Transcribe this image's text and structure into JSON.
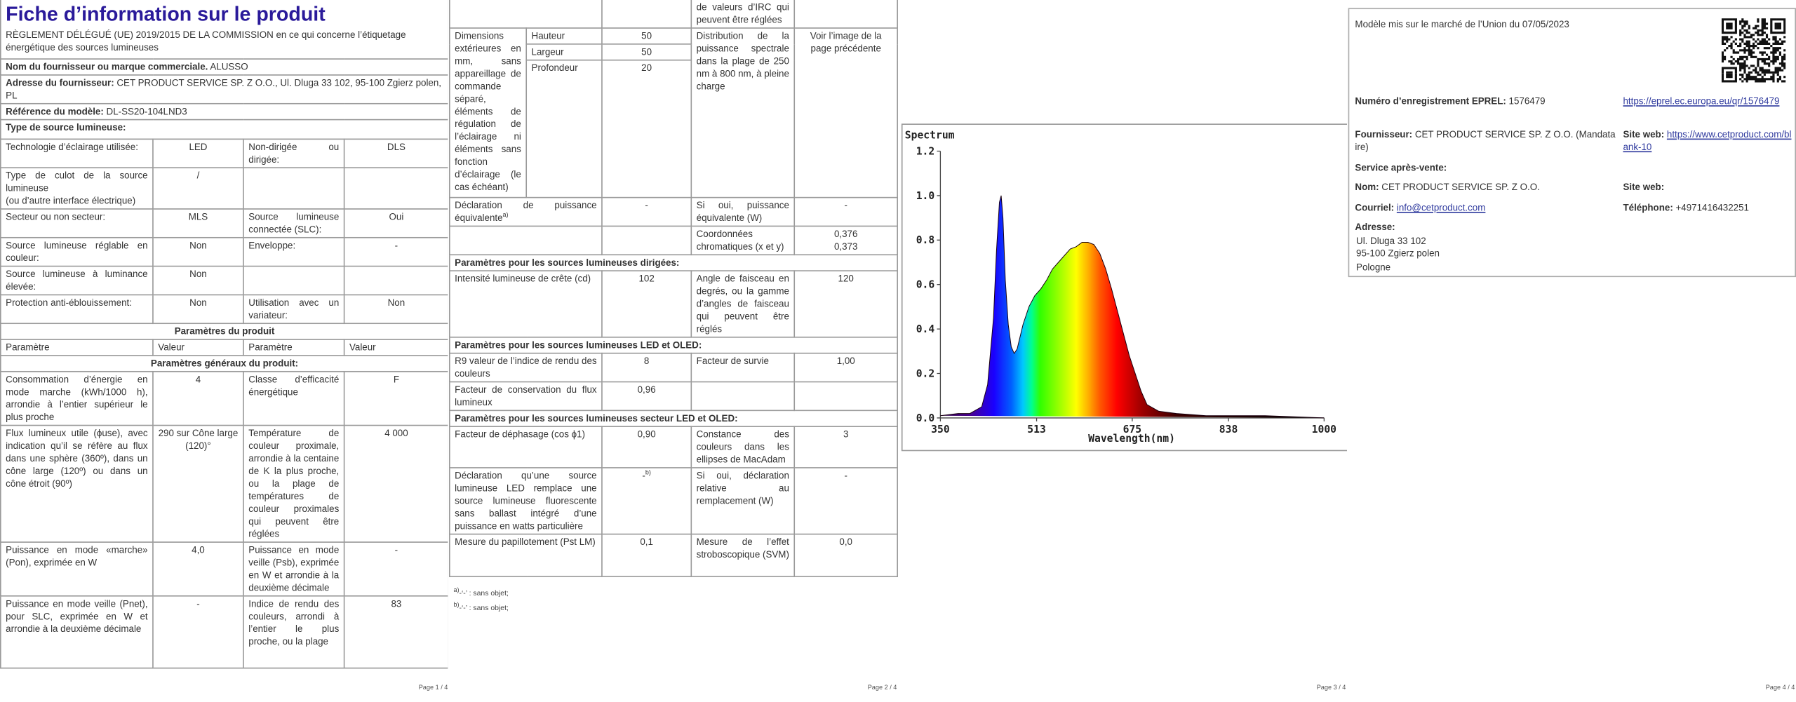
{
  "chart_data": {
    "type": "area",
    "title": "Spectrum",
    "x_label": "Wavelength(nm)",
    "x": [
      350,
      380,
      400,
      420,
      430,
      440,
      445,
      450,
      453,
      456,
      460,
      465,
      470,
      475,
      480,
      490,
      500,
      510,
      520,
      530,
      540,
      550,
      560,
      570,
      580,
      590,
      600,
      610,
      620,
      630,
      640,
      650,
      660,
      670,
      680,
      690,
      700,
      720,
      750,
      800,
      850,
      900,
      1000
    ],
    "values": [
      0.01,
      0.02,
      0.02,
      0.05,
      0.15,
      0.45,
      0.75,
      0.97,
      1.0,
      0.9,
      0.62,
      0.42,
      0.32,
      0.29,
      0.31,
      0.42,
      0.5,
      0.55,
      0.58,
      0.62,
      0.67,
      0.7,
      0.73,
      0.76,
      0.77,
      0.79,
      0.79,
      0.78,
      0.74,
      0.67,
      0.58,
      0.48,
      0.38,
      0.28,
      0.2,
      0.12,
      0.06,
      0.03,
      0.02,
      0.01,
      0.01,
      0.01,
      0.0
    ],
    "xlim": [
      350,
      1000
    ],
    "ylim": [
      0,
      1.2
    ],
    "xticks": [
      350,
      513,
      675,
      838,
      1000
    ],
    "yticks": [
      {
        "value": 0,
        "label": "0.0"
      },
      0.2,
      0.4,
      0.6,
      0.8,
      {
        "value": 1,
        "label": "1.0"
      },
      1.2
    ]
  },
  "page1": {
    "title": "Fiche d’information sur le produit",
    "regulation": "RÈGLEMENT DÉLÉGUÉ (UE) 2019/2015 DE LA COMMISSION en ce qui concerne l’étiquetage énergétique des sources lumineuses",
    "supplier": [
      "Nom du fournisseur ou marque commerciale.",
      "ALUSSO"
    ],
    "address": [
      "Adresse du fournisseur:",
      "CET PRODUCT SERVICE SP. Z O.O., Ul. Dluga 33 102, 95-100 Zgierz polen, PL"
    ],
    "model": [
      "Référence du modèle:",
      "DL-SS20-104LND3"
    ],
    "type_heading": "Type de source lumineuse:",
    "type_rows": [
      [
        "Technologie d’éclairage utilisée:",
        "LED",
        "Non-dirigée ou dirigée:",
        "DLS"
      ],
      [
        "Type de culot de la source lumineuse\n(ou d’autre interface électrique)",
        "/",
        null,
        null
      ],
      [
        "Secteur ou non secteur:",
        "MLS",
        "Source lumineuse connectée (SLC):",
        "Oui"
      ],
      [
        "Source lumineuse réglable en couleur:",
        "Non",
        "Enveloppe:",
        "-"
      ],
      [
        "Source lumineuse à luminance élevée:",
        "Non",
        null,
        null
      ],
      [
        "Protection anti-éblouissement:",
        "Non",
        "Utilisation avec un variateur:",
        "Non"
      ]
    ],
    "params_heading": "Paramètres du produit",
    "columns": [
      "Paramètre",
      "Valeur",
      "Paramètre",
      "Valeur"
    ],
    "general_heading": "Paramètres généraux du produit:",
    "general_rows": [
      [
        "Consommation d’énergie en mode marche (kWh/1000 h), arrondie à l’entier supérieur le plus proche",
        "4",
        "Classe d’efficacité énergétique",
        "F"
      ],
      [
        "Flux lumineux utile (ϕuse), avec indication qu’il se réfère au flux dans une sphère (360º), dans un cône large (120º) ou dans un cône étroit (90º)",
        "290 sur Cône large (120)°",
        "Température de couleur proximale, arrondie à la centaine de K la plus proche, ou la plage de températures de couleur proximales qui peuvent être réglées",
        "4 000"
      ],
      [
        "Puissance en mode «marche» (Pon), exprimée en W",
        "4,0",
        "Puissance en mode veille (Psb), exprimée en W et arrondie à la deuxième décimale",
        "-"
      ],
      [
        "Puissance en mode veille (Pnet), pour SLC, exprimée en W et arrondie à la deuxième décimale",
        "-",
        "Indice de rendu des couleurs, arrondi à l’entier le plus proche, ou la plage",
        "83"
      ]
    ],
    "footer": "Page 1 / 4"
  },
  "page2": {
    "continuation": "de valeurs d’IRC qui peuvent être réglées",
    "dimensions_label": "Dimensions extérieures en mm, sans appareillage de commande séparé, éléments de régulation de l’éclairage ni éléments sans fonction d’éclairage (le cas échéant)",
    "dimensions": [
      [
        "Hauteur",
        "50"
      ],
      [
        "Largeur",
        "50"
      ],
      [
        "Profondeur",
        "20"
      ]
    ],
    "spectral_label": "Distribution de la puissance spectrale dans la plage de 250 nm à 800 nm, à pleine charge",
    "spectral_value": "Voir l’image de la page précédente",
    "equivalent": [
      "Déclaration de puissance équivalente",
      "a)",
      "-",
      "Si oui, puissance équivalente (W)",
      "-"
    ],
    "chromaticity": [
      "Coordonnées chromatiques (x et y)",
      "0,376\n0,373"
    ],
    "directional_heading": "Paramètres pour les sources lumineuses dirigées:",
    "directional_row": [
      "Intensité lumineuse de crête (cd)",
      "102",
      "Angle de faisceau en degrés, ou la gamme d’angles de faisceau qui peuvent être réglés",
      "120"
    ],
    "led_heading": "Paramètres pour les sources lumineuses LED et OLED:",
    "led_rows": [
      [
        "R9 valeur de l’indice de rendu des couleurs",
        "8",
        "Facteur de survie",
        "1,00"
      ],
      [
        "Facteur de conservation du flux lumineux",
        "0,96",
        null,
        null
      ]
    ],
    "mains_heading": "Paramètres pour les sources lumineuses secteur LED et OLED:",
    "phase_row": [
      "Facteur de déphasage (cos ϕ1)",
      "0,90",
      "Constance des couleurs dans les ellipses de MacAdam",
      "3"
    ],
    "replacement_row": [
      "Déclaration qu’une source lumineuse LED remplace une source lumineuse fluorescente sans ballast intégré d’une puissance en watts particulière",
      "-",
      "b)",
      "Si oui, déclaration relative au remplacement (W)",
      "-"
    ],
    "flicker_row": [
      "Mesure du papillotement (Pst LM)",
      "0,1",
      "Mesure de l’effet stroboscopique (SVM)",
      "0,0"
    ],
    "footnotes": [
      [
        "a)",
        "-‘-’ : sans objet;"
      ],
      [
        "b)",
        "-‘-’ : sans objet;"
      ]
    ],
    "footer": "Page 2 / 4"
  },
  "page3": {
    "footer": "Page 3 / 4"
  },
  "page4": {
    "market_date": "Modèle mis sur le marché de l’Union du 07/05/2023",
    "eprel": [
      "Numéro d’enregistrement EPREL:",
      "1576479"
    ],
    "eprel_link": "https://eprel.ec.europa.eu/qr/1576479",
    "supplier": [
      "Fournisseur:",
      "CET PRODUCT SERVICE SP. Z O.O. (Mandataire)"
    ],
    "website": [
      "Site web:",
      "https://www.cetproduct.com/blank-10"
    ],
    "service_heading": "Service après-vente:",
    "name": [
      "Nom:",
      "CET PRODUCT SERVICE SP. Z O.O."
    ],
    "service_website": "Site web:",
    "email": [
      "Courriel:",
      "info@cetproduct.com"
    ],
    "phone": [
      "Téléphone:",
      "+4971416432251"
    ],
    "address_label": "Adresse:",
    "address_lines": [
      "Ul. Dluga 33 102",
      "95-100 Zgierz polen",
      "Pologne"
    ],
    "footer": "Page 4 / 4"
  }
}
